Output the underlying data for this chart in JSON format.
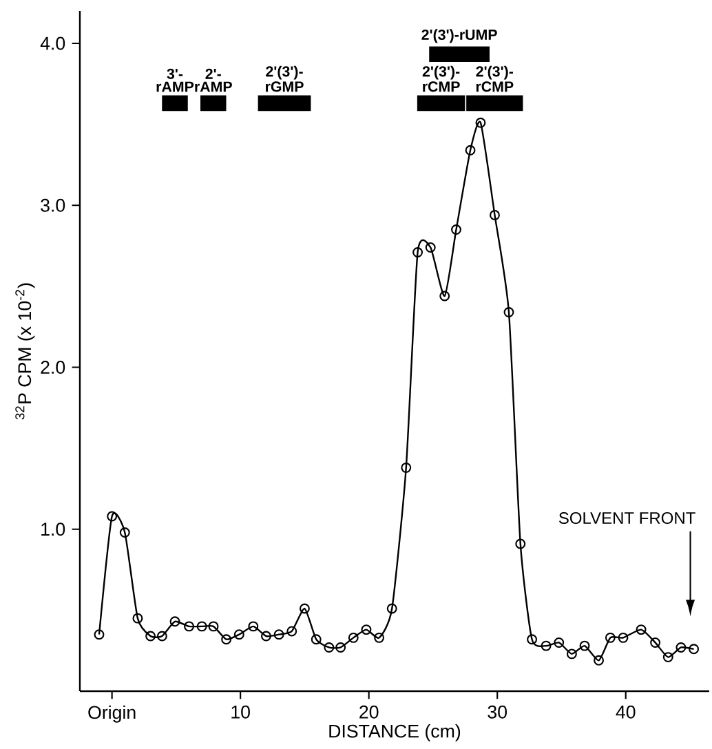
{
  "chart_data": {
    "type": "line",
    "xlabel": "DISTANCE (cm)",
    "ylabel": "$^{32}$P CPM (x 10$^{-2}$)",
    "x": [
      -1.0,
      0.0,
      1.0,
      2.0,
      3.0,
      3.9,
      4.9,
      6.0,
      7.0,
      7.9,
      8.9,
      9.9,
      11.0,
      12.0,
      13.0,
      14.0,
      15.0,
      15.9,
      16.9,
      17.8,
      18.8,
      19.8,
      20.8,
      21.8,
      22.9,
      23.8,
      24.8,
      25.9,
      26.8,
      27.9,
      28.7,
      29.8,
      30.9,
      31.8,
      32.7,
      33.8,
      34.8,
      35.8,
      36.8,
      37.9,
      38.8,
      39.8,
      41.2,
      42.3,
      43.3,
      44.3,
      45.3
    ],
    "values": [
      0.35,
      1.08,
      0.98,
      0.45,
      0.34,
      0.34,
      0.43,
      0.4,
      0.4,
      0.4,
      0.32,
      0.35,
      0.4,
      0.34,
      0.35,
      0.37,
      0.51,
      0.32,
      0.27,
      0.27,
      0.33,
      0.38,
      0.33,
      0.51,
      1.38,
      2.71,
      2.74,
      2.44,
      2.85,
      3.34,
      3.51,
      2.94,
      2.34,
      0.91,
      0.32,
      0.28,
      0.3,
      0.23,
      0.28,
      0.19,
      0.33,
      0.33,
      0.38,
      0.3,
      0.21,
      0.27,
      0.26
    ],
    "color": "#000000",
    "marker": "circle",
    "line_style": "solid",
    "xlim": [
      -2.5,
      46.5
    ],
    "ylim": [
      0,
      4.2
    ],
    "xticks": [
      {
        "value": 0,
        "label": "Origin"
      },
      10,
      20,
      30,
      40
    ],
    "yticks": [
      {
        "value": 1,
        "label": "1.0"
      },
      {
        "value": 2,
        "label": "2.0"
      },
      {
        "value": 3,
        "label": "3.0"
      },
      {
        "value": 4,
        "label": "4.0"
      }
    ],
    "annotations": [
      "3'- rAMP",
      "2'- rAMP",
      "2'(3')- rGMP",
      "2'(3')- rCMP",
      "2'(3')- rCMP",
      "2'(3')-rUMP",
      "SOLVENT FRONT"
    ]
  }
}
